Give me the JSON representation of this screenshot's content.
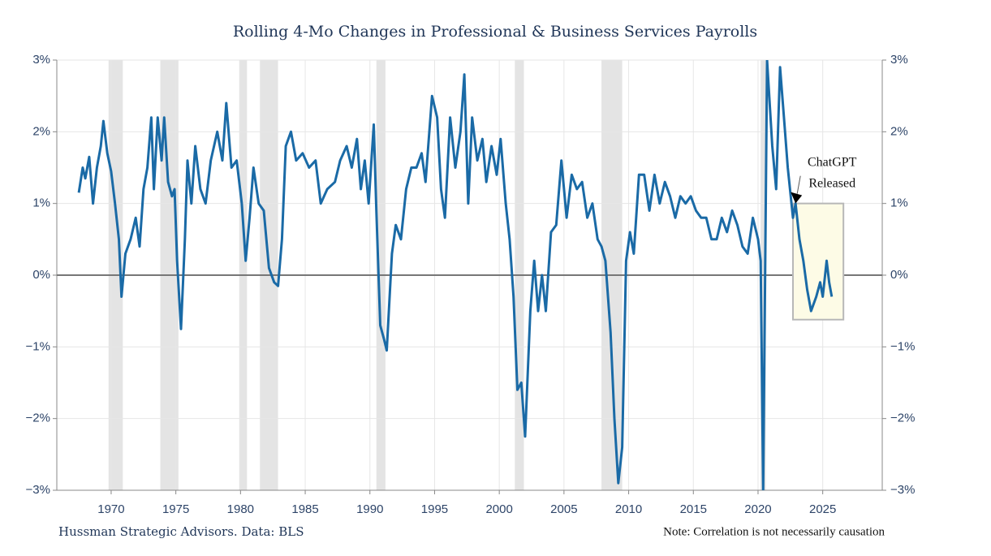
{
  "chart_data": {
    "type": "line",
    "title": "Rolling 4-Mo Changes in Professional & Business Services Payrolls",
    "source": "Hussman Strategic Advisors. Data: BLS",
    "note": "Note: Correlation is not necessarily causation",
    "annotation": {
      "lines": [
        "ChatGPT",
        "Released"
      ],
      "x": 2022.9,
      "y": 1.0
    },
    "highlight": {
      "x": [
        2022.7,
        2026.6
      ],
      "y": [
        -0.62,
        1.0
      ]
    },
    "recessions": [
      [
        1969.8,
        1970.9
      ],
      [
        1973.8,
        1975.2
      ],
      [
        1979.9,
        1980.5
      ],
      [
        1981.5,
        1982.9
      ],
      [
        1990.5,
        1991.2
      ],
      [
        2001.2,
        2001.9
      ],
      [
        2007.9,
        2009.5
      ],
      [
        2020.2,
        2020.6
      ]
    ],
    "color": "#1a6aa6",
    "x": [
      1967.5,
      1967.8,
      1968.0,
      1968.3,
      1968.6,
      1968.9,
      1969.2,
      1969.4,
      1969.7,
      1970.0,
      1970.3,
      1970.6,
      1970.8,
      1971.1,
      1971.5,
      1971.9,
      1972.2,
      1972.5,
      1972.8,
      1973.1,
      1973.3,
      1973.6,
      1973.9,
      1974.1,
      1974.4,
      1974.7,
      1974.9,
      1975.1,
      1975.4,
      1975.7,
      1975.9,
      1976.2,
      1976.5,
      1976.9,
      1977.3,
      1977.7,
      1978.2,
      1978.6,
      1978.9,
      1979.3,
      1979.7,
      1980.1,
      1980.4,
      1980.7,
      1981.0,
      1981.4,
      1981.8,
      1982.2,
      1982.6,
      1982.9,
      1983.2,
      1983.5,
      1983.9,
      1984.3,
      1984.8,
      1985.3,
      1985.8,
      1986.2,
      1986.7,
      1987.3,
      1987.7,
      1988.2,
      1988.6,
      1989.0,
      1989.3,
      1989.6,
      1989.9,
      1990.3,
      1990.5,
      1990.8,
      1991.1,
      1991.3,
      1991.7,
      1992.0,
      1992.4,
      1992.8,
      1993.2,
      1993.6,
      1994.0,
      1994.3,
      1994.8,
      1995.2,
      1995.5,
      1995.8,
      1996.2,
      1996.6,
      1997.0,
      1997.3,
      1997.6,
      1997.9,
      1998.3,
      1998.7,
      1999.0,
      1999.4,
      1999.8,
      2000.1,
      2000.5,
      2000.8,
      2001.1,
      2001.4,
      2001.7,
      2002.0,
      2002.4,
      2002.7,
      2003.0,
      2003.3,
      2003.6,
      2004.0,
      2004.4,
      2004.8,
      2005.2,
      2005.6,
      2006.0,
      2006.4,
      2006.8,
      2007.2,
      2007.6,
      2007.9,
      2008.2,
      2008.6,
      2008.9,
      2009.2,
      2009.5,
      2009.8,
      2010.1,
      2010.4,
      2010.8,
      2011.2,
      2011.6,
      2012.0,
      2012.4,
      2012.8,
      2013.2,
      2013.6,
      2014.0,
      2014.4,
      2014.8,
      2015.2,
      2015.6,
      2016.0,
      2016.4,
      2016.8,
      2017.2,
      2017.6,
      2018.0,
      2018.4,
      2018.8,
      2019.2,
      2019.6,
      2020.0,
      2020.2,
      2020.4,
      2020.7,
      2021.1,
      2021.4,
      2021.7,
      2022.0,
      2022.3,
      2022.7,
      2022.9,
      2023.2,
      2023.5,
      2023.8,
      2024.1,
      2024.5,
      2024.8,
      2025.0,
      2025.3,
      2025.5,
      2025.7
    ],
    "values": [
      1.15,
      1.5,
      1.35,
      1.65,
      1.0,
      1.5,
      1.8,
      2.15,
      1.7,
      1.45,
      1.0,
      0.5,
      -0.3,
      0.3,
      0.5,
      0.8,
      0.4,
      1.2,
      1.5,
      2.2,
      1.2,
      2.2,
      1.6,
      2.2,
      1.3,
      1.1,
      1.2,
      0.2,
      -0.75,
      0.5,
      1.6,
      1.0,
      1.8,
      1.2,
      1.0,
      1.6,
      2.0,
      1.6,
      2.4,
      1.5,
      1.6,
      1.0,
      0.2,
      0.8,
      1.5,
      1.0,
      0.9,
      0.1,
      -0.1,
      -0.15,
      0.5,
      1.8,
      2.0,
      1.6,
      1.7,
      1.5,
      1.6,
      1.0,
      1.2,
      1.3,
      1.6,
      1.8,
      1.5,
      1.9,
      1.2,
      1.6,
      1.0,
      2.1,
      0.9,
      -0.7,
      -0.9,
      -1.05,
      0.3,
      0.7,
      0.5,
      1.2,
      1.5,
      1.5,
      1.7,
      1.3,
      2.5,
      2.2,
      1.2,
      0.8,
      2.2,
      1.5,
      2.0,
      2.8,
      1.0,
      2.2,
      1.6,
      1.9,
      1.3,
      1.8,
      1.4,
      1.9,
      1.0,
      0.5,
      -0.3,
      -1.6,
      -1.5,
      -2.25,
      -0.5,
      0.2,
      -0.5,
      0.0,
      -0.5,
      0.6,
      0.7,
      1.6,
      0.8,
      1.4,
      1.2,
      1.3,
      0.8,
      1.0,
      0.5,
      0.4,
      0.2,
      -0.8,
      -2.0,
      -2.9,
      -2.4,
      0.2,
      0.6,
      0.3,
      1.4,
      1.4,
      0.9,
      1.4,
      1.0,
      1.3,
      1.1,
      0.8,
      1.1,
      1.0,
      1.1,
      0.9,
      0.8,
      0.8,
      0.5,
      0.5,
      0.8,
      0.6,
      0.9,
      0.7,
      0.4,
      0.3,
      0.8,
      0.5,
      0.2,
      -3.0,
      3.0,
      1.8,
      1.2,
      2.9,
      2.2,
      1.5,
      0.8,
      1.0,
      0.5,
      0.2,
      -0.2,
      -0.5,
      -0.3,
      -0.1,
      -0.3,
      0.2,
      -0.1,
      -0.3
    ],
    "xlim": [
      1965.8,
      2029.6
    ],
    "xticks": [
      1970,
      1975,
      1980,
      1985,
      1990,
      1995,
      2000,
      2005,
      2010,
      2015,
      2020,
      2025
    ],
    "ylim": [
      -3,
      3
    ],
    "yticks": [
      {
        "value": -3,
        "label": "−3%"
      },
      {
        "value": -2,
        "label": "−2%"
      },
      {
        "value": -1,
        "label": "−1%"
      },
      {
        "value": 0,
        "label": "0%"
      },
      {
        "value": 1,
        "label": "1%"
      },
      {
        "value": 2,
        "label": "2%"
      },
      {
        "value": 3,
        "label": "3%"
      }
    ],
    "grid": true,
    "zero_line": true
  }
}
